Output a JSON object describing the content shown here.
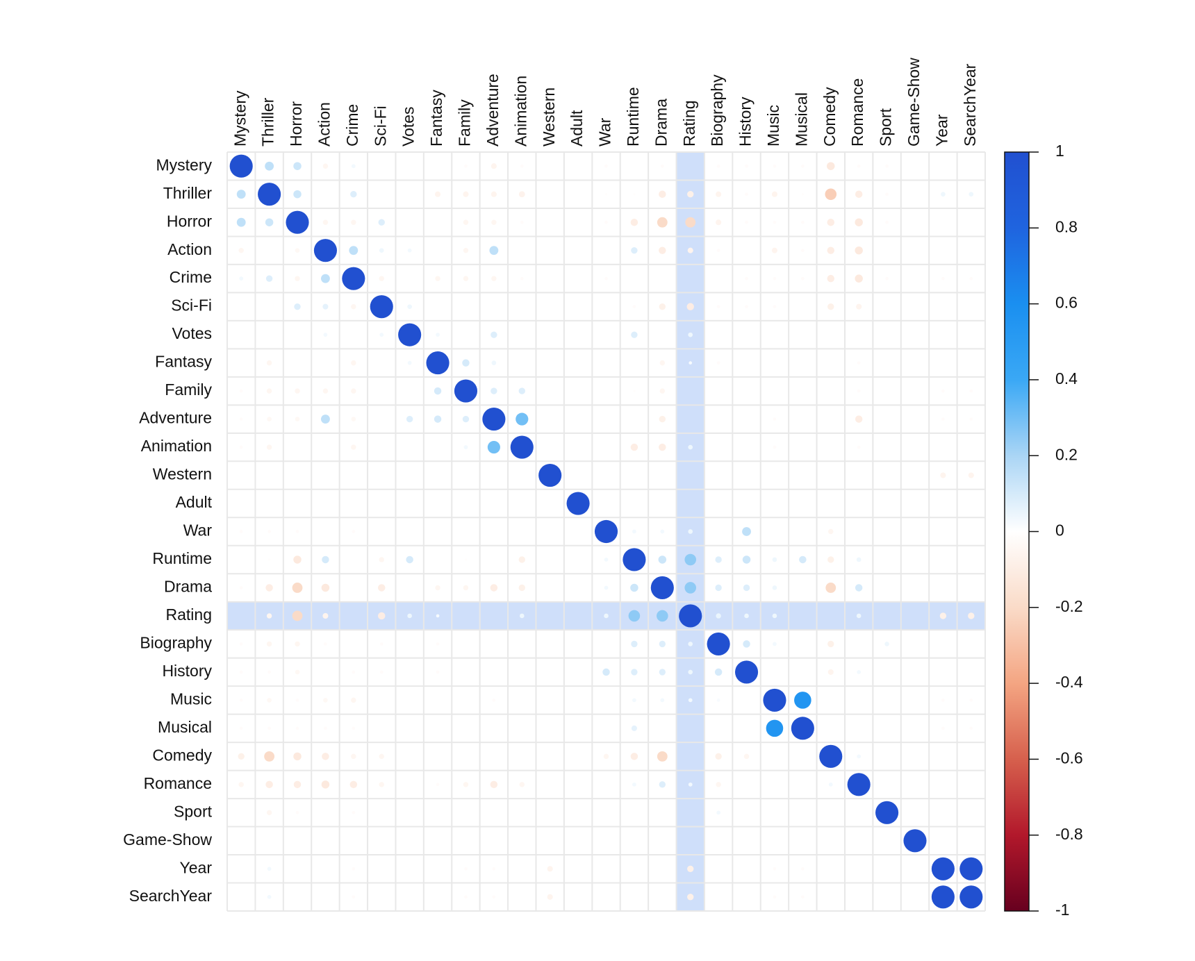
{
  "chart_data": {
    "type": "corrplot",
    "variables": [
      "Mystery",
      "Thriller",
      "Horror",
      "Action",
      "Crime",
      "Sci-Fi",
      "Votes",
      "Fantasy",
      "Family",
      "Adventure",
      "Animation",
      "Western",
      "Adult",
      "War",
      "Runtime",
      "Drama",
      "Rating",
      "Biography",
      "History",
      "Music",
      "Musical",
      "Comedy",
      "Romance",
      "Sport",
      "Game-Show",
      "Year",
      "SearchYear"
    ],
    "matrix": [
      [
        1,
        0.15,
        0.12,
        -0.05,
        0.03,
        0,
        0,
        0,
        -0.02,
        -0.06,
        -0.02,
        0,
        0,
        -0.02,
        0,
        -0.02,
        0,
        -0.02,
        -0.02,
        -0.02,
        -0.02,
        -0.12,
        -0.02,
        -0.02,
        0,
        0,
        0
      ],
      [
        0.15,
        1,
        0.12,
        0,
        0.08,
        0,
        0,
        -0.06,
        -0.06,
        -0.06,
        -0.07,
        0,
        0,
        -0.01,
        -0.01,
        -0.1,
        -0.08,
        -0.06,
        -0.02,
        -0.06,
        -0.01,
        -0.25,
        -0.1,
        -0.02,
        0,
        0.04,
        0.04
      ],
      [
        0.15,
        0.12,
        1,
        -0.05,
        -0.05,
        0.08,
        0,
        0,
        -0.05,
        -0.05,
        -0.02,
        0,
        0,
        -0.02,
        -0.1,
        -0.2,
        -0.2,
        -0.06,
        -0.02,
        -0.02,
        -0.02,
        -0.1,
        -0.12,
        -0.02,
        0,
        0,
        0
      ],
      [
        -0.05,
        0,
        -0.04,
        1,
        0.15,
        0.04,
        0.03,
        0,
        -0.05,
        0.15,
        0,
        0,
        0,
        0,
        0.08,
        -0.1,
        -0.06,
        -0.02,
        0,
        -0.06,
        -0.02,
        -0.1,
        -0.12,
        0,
        0,
        0,
        0
      ],
      [
        0.03,
        0.08,
        -0.05,
        0.15,
        1,
        -0.05,
        0,
        -0.05,
        -0.05,
        -0.05,
        -0.02,
        0,
        0,
        -0.02,
        0,
        0,
        0,
        0,
        -0.02,
        -0.02,
        -0.02,
        -0.1,
        -0.12,
        -0.02,
        0,
        -0.02,
        -0.02
      ],
      [
        0,
        0,
        0.08,
        0.06,
        -0.05,
        1,
        0.04,
        0,
        0,
        0,
        0,
        0,
        0,
        0,
        -0.02,
        -0.08,
        -0.1,
        -0.02,
        -0.02,
        -0.02,
        0,
        -0.08,
        -0.06,
        0,
        0,
        0,
        0
      ],
      [
        0,
        0,
        0,
        0.03,
        0,
        0.03,
        1,
        0.03,
        0,
        0.08,
        0,
        0,
        0,
        0,
        0.08,
        0,
        0.04,
        0,
        0,
        0,
        0,
        0,
        0,
        0,
        0,
        0,
        0
      ],
      [
        0,
        -0.05,
        0,
        0,
        -0.05,
        0,
        0.03,
        1,
        0.1,
        0.04,
        0,
        0,
        0,
        0,
        0,
        -0.05,
        0.02,
        -0.02,
        0,
        0,
        0,
        0,
        -0.02,
        0,
        0,
        0,
        0
      ],
      [
        -0.02,
        -0.05,
        -0.05,
        -0.05,
        -0.05,
        0,
        0,
        0.1,
        1,
        0.08,
        0.08,
        0,
        0,
        0,
        -0.01,
        -0.05,
        0,
        0,
        0,
        0,
        0,
        0,
        -0.02,
        0,
        0,
        -0.02,
        -0.02
      ],
      [
        -0.02,
        -0.04,
        -0.04,
        0.15,
        -0.04,
        0,
        0.08,
        0.1,
        0.08,
        1,
        0.3,
        0,
        0,
        0,
        0,
        -0.08,
        0,
        0,
        0,
        -0.02,
        0,
        0,
        -0.1,
        0,
        0,
        -0.02,
        -0.02
      ],
      [
        -0.02,
        -0.05,
        0,
        0,
        -0.05,
        0,
        0,
        0,
        0.03,
        0.3,
        1,
        0,
        0,
        0,
        -0.1,
        -0.1,
        0.04,
        0,
        0,
        -0.02,
        0,
        0,
        -0.02,
        0,
        0,
        0,
        0
      ],
      [
        0,
        0,
        0,
        0,
        0,
        0,
        0,
        0,
        0,
        0,
        0,
        1,
        0,
        0,
        0,
        0,
        0,
        0,
        0,
        0,
        0,
        0,
        0,
        0,
        0,
        -0.06,
        -0.06
      ],
      [
        0,
        0,
        0,
        0,
        0,
        0,
        0,
        0,
        0,
        0,
        0,
        0,
        1,
        0,
        0,
        0,
        0,
        0,
        0,
        0,
        0,
        0,
        0,
        0,
        0,
        0,
        0
      ],
      [
        -0.02,
        -0.02,
        -0.02,
        0,
        -0.02,
        0,
        0,
        0,
        0,
        0,
        0,
        0,
        0,
        1,
        0.03,
        0.03,
        0.04,
        0,
        0.15,
        0,
        0,
        -0.05,
        0,
        0,
        0,
        0,
        0
      ],
      [
        0,
        -0.01,
        -0.12,
        0.1,
        0,
        -0.05,
        0.1,
        0,
        -0.01,
        0,
        -0.08,
        0,
        0,
        0.03,
        1,
        0.12,
        0.25,
        0.08,
        0.12,
        0.04,
        0.1,
        -0.08,
        0.04,
        0,
        0,
        0,
        0
      ],
      [
        -0.02,
        -0.1,
        -0.2,
        -0.12,
        0,
        -0.1,
        0,
        -0.05,
        -0.05,
        -0.1,
        -0.08,
        0,
        0,
        0.03,
        0.12,
        1,
        0.25,
        0.08,
        0.08,
        0.04,
        0,
        -0.2,
        0.1,
        0,
        0,
        0,
        0
      ],
      [
        0,
        -0.05,
        -0.2,
        -0.06,
        0,
        -0.1,
        0.04,
        0.02,
        0,
        0,
        0.04,
        0,
        0,
        0.04,
        0.25,
        0.25,
        1,
        0.05,
        0.04,
        0.04,
        0,
        0,
        0.04,
        0,
        0,
        -0.08,
        -0.08
      ],
      [
        -0.02,
        -0.05,
        -0.05,
        -0.02,
        0,
        -0.02,
        0,
        -0.02,
        0,
        0,
        0,
        0,
        0,
        0,
        0.08,
        0.08,
        0.04,
        1,
        0.1,
        0.03,
        0,
        -0.08,
        0,
        0.04,
        0,
        0,
        0
      ],
      [
        -0.02,
        -0.02,
        -0.04,
        0,
        -0.02,
        -0.02,
        0,
        -0.02,
        0,
        0,
        0,
        0,
        0,
        0.1,
        0.08,
        0.08,
        0.04,
        0.1,
        1,
        0,
        0,
        -0.06,
        0.03,
        0,
        0,
        0,
        0
      ],
      [
        -0.02,
        -0.04,
        -0.02,
        -0.04,
        -0.05,
        0,
        0,
        0,
        0,
        -0.02,
        0,
        0,
        0,
        0,
        0.03,
        0.03,
        0.03,
        0.02,
        0,
        1,
        0.55,
        0,
        0,
        0,
        0,
        -0.02,
        -0.02
      ],
      [
        -0.02,
        -0.02,
        -0.02,
        -0.02,
        -0.02,
        0,
        0,
        0,
        0,
        0,
        0,
        0,
        0,
        0,
        0.06,
        0,
        0,
        0,
        0,
        0.55,
        1,
        0,
        0,
        0,
        0,
        -0.02,
        -0.02
      ],
      [
        -0.08,
        -0.2,
        -0.12,
        -0.1,
        -0.05,
        -0.05,
        0,
        0,
        0,
        0,
        0,
        0,
        0,
        -0.05,
        -0.1,
        -0.2,
        0,
        -0.08,
        -0.05,
        0,
        0,
        1,
        0.03,
        0,
        0,
        0,
        0
      ],
      [
        -0.05,
        -0.1,
        -0.1,
        -0.12,
        -0.1,
        -0.05,
        0,
        -0.02,
        -0.05,
        -0.1,
        -0.05,
        0,
        0,
        0,
        0.03,
        0.08,
        0.03,
        -0.05,
        0,
        0,
        0,
        0.03,
        1,
        0,
        0,
        0,
        0
      ],
      [
        0,
        -0.05,
        -0.02,
        0,
        -0.02,
        0,
        0,
        0,
        0,
        0,
        0,
        0,
        0,
        0,
        0,
        0,
        0,
        0.03,
        0,
        0,
        0,
        0,
        0,
        1,
        0,
        0,
        0
      ],
      [
        0,
        0,
        0,
        0,
        0,
        0,
        0,
        0,
        0,
        0,
        0,
        0,
        0,
        0,
        0,
        0,
        0,
        0,
        0,
        0,
        0,
        0,
        0,
        0,
        1,
        0,
        0
      ],
      [
        0,
        0.03,
        0,
        0,
        -0.02,
        0,
        0,
        0,
        -0.02,
        -0.02,
        0,
        -0.06,
        0,
        0,
        0,
        0,
        -0.08,
        0,
        0,
        -0.02,
        -0.02,
        0,
        0,
        0,
        0,
        1,
        1
      ],
      [
        0,
        0.03,
        0,
        0,
        -0.02,
        0,
        0,
        0,
        -0.02,
        -0.02,
        0,
        -0.06,
        0,
        0,
        0,
        0,
        -0.08,
        0,
        0,
        -0.02,
        -0.02,
        0,
        0,
        0,
        0,
        1,
        1
      ]
    ],
    "highlight": "Rating",
    "highlight_color": "#cfdffa",
    "colorscale": [
      "#67001f",
      "#b2182b",
      "#d6604d",
      "#f4a582",
      "#fadbc8",
      "#ffffff",
      "#aad5f5",
      "#3aa8f5",
      "#1a8ff0",
      "#1f64df",
      "#2150d0"
    ],
    "clim": [
      -1,
      1
    ],
    "cticks": [
      1,
      0.8,
      0.6,
      0.4,
      0.2,
      0,
      -0.2,
      -0.4,
      -0.6,
      -0.8,
      -1
    ]
  }
}
